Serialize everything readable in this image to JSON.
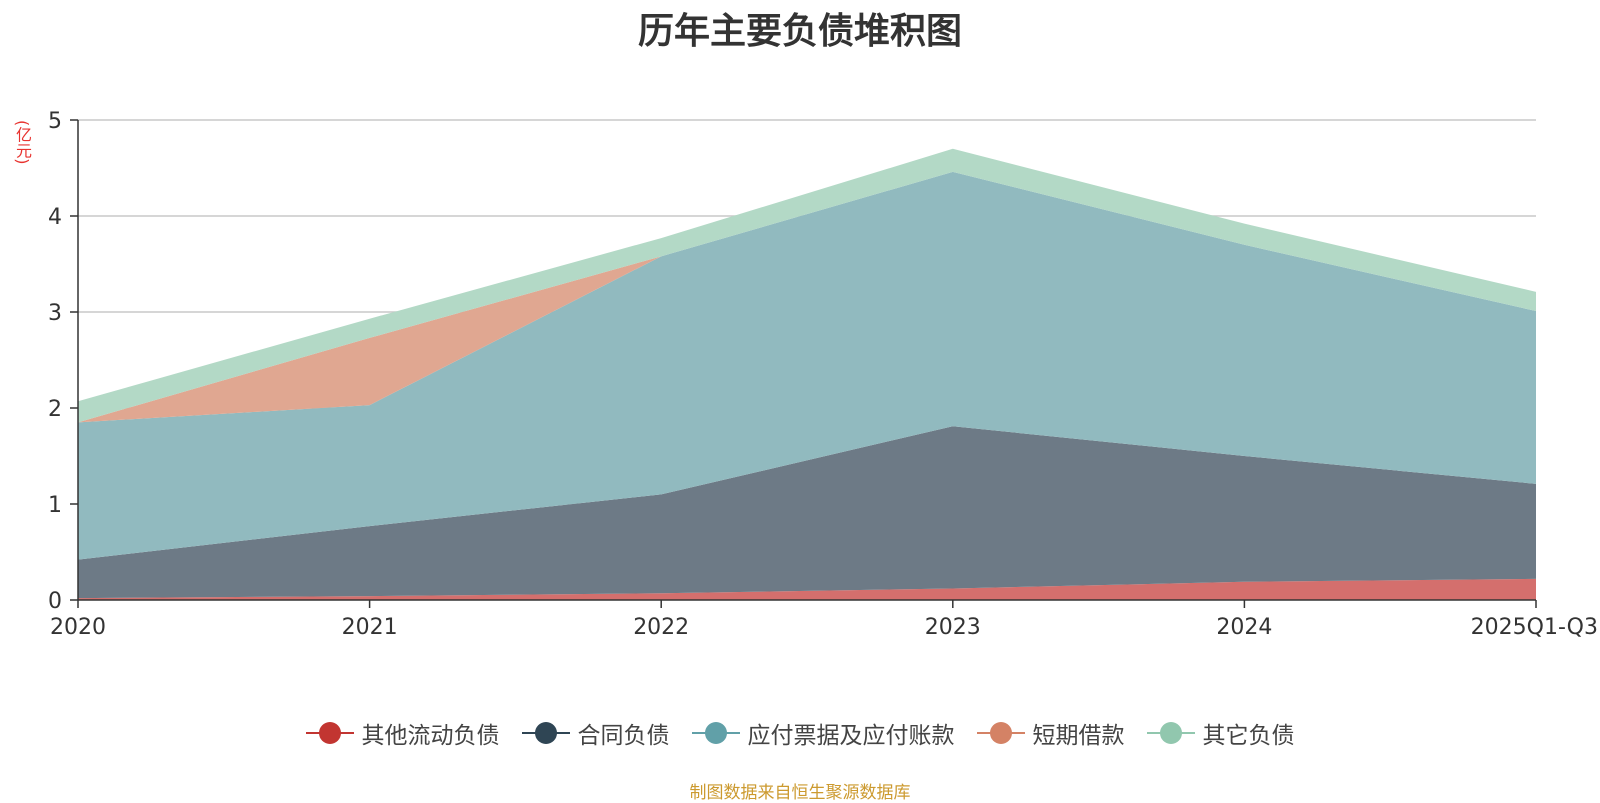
{
  "chart_data": {
    "type": "area",
    "title": "历年主要负债堆积图",
    "unit_label": "(亿元)",
    "categories": [
      "2020",
      "2021",
      "2022",
      "2023",
      "2024",
      "2025Q1-Q3"
    ],
    "ylim": [
      0,
      5
    ],
    "yticks": [
      "0",
      "1",
      "2",
      "3",
      "4",
      "5"
    ],
    "grid": true,
    "legend_position": "bottom",
    "stacked": true,
    "series": [
      {
        "name": "其他流动负债",
        "color": "#c23531",
        "fill": "#d46f6d",
        "values": [
          0.02,
          0.04,
          0.07,
          0.12,
          0.19,
          0.22
        ]
      },
      {
        "name": "合同负债",
        "color": "#2f4554",
        "fill": "#6d7a86",
        "values": [
          0.4,
          0.73,
          1.03,
          1.69,
          1.31,
          0.99
        ]
      },
      {
        "name": "应付票据及应付账款",
        "color": "#61a0a8",
        "fill": "#91babf",
        "values": [
          1.43,
          1.26,
          2.48,
          2.65,
          2.2,
          1.8
        ]
      },
      {
        "name": "短期借款",
        "color": "#d48265",
        "fill": "#e0a791",
        "values": [
          0.0,
          0.7,
          0.0,
          0.0,
          0.0,
          0.0
        ]
      },
      {
        "name": "其它负债",
        "color": "#91c7ae",
        "fill": "#b3d9c6",
        "values": [
          0.22,
          0.2,
          0.19,
          0.24,
          0.22,
          0.2
        ]
      }
    ]
  },
  "footer": "制图数据来自恒生聚源数据库"
}
